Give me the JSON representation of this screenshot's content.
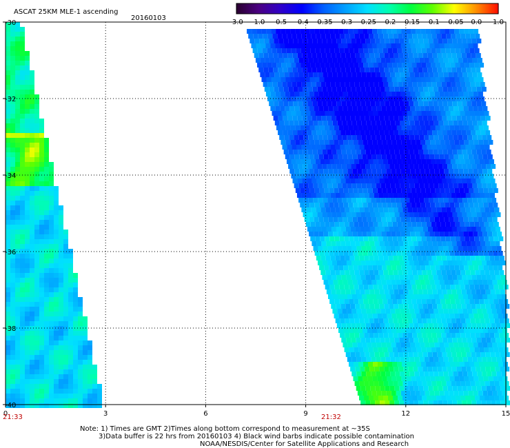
{
  "header": {
    "title": "ASCAT 25KM MLE-1 ascending",
    "date": "20160103"
  },
  "colorbar": {
    "tick_labels": [
      "-3.0",
      "-1.0",
      "-0.5",
      "-0.4",
      "-0.35",
      "-0.3",
      "-0.25",
      "-0.2",
      "-0.15",
      "-0.1",
      "-0.05",
      "0.0",
      "1.0"
    ],
    "colors": [
      "#2a0030",
      "#4b0082",
      "#3000c8",
      "#0000ff",
      "#0060ff",
      "#00a0ff",
      "#00e0ff",
      "#00ffb0",
      "#00ff40",
      "#60ff00",
      "#ffff00",
      "#ff9000",
      "#ff1000"
    ]
  },
  "map": {
    "lat_labels": [
      "-30",
      "-32",
      "-34",
      "-36",
      "-38",
      "-40"
    ],
    "lon_labels": [
      "0",
      "3",
      "6",
      "9",
      "12",
      "15"
    ],
    "lat_range": [
      -30,
      -40
    ],
    "lon_range": [
      0,
      15
    ],
    "grid": "dotted",
    "swath_times": [
      "21:33",
      "21:32"
    ],
    "swaths": [
      "left narrow swath, values mostly -0.3 to -0.05",
      "right swath, values mostly -0.4 to -0.15"
    ]
  },
  "footer": {
    "line1": "Note: 1) Times are GMT 2)Times along bottom correspond to measurement at ~35S",
    "line2": "3)Data buffer is 22 hrs from 20160103 4) Black wind barbs indicate possible contamination",
    "line3": "NOAA/NESDIS/Center for Satellite Applications and Research"
  }
}
